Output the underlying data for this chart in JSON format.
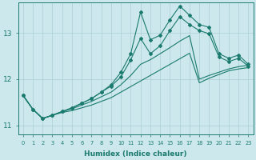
{
  "xlabel": "Humidex (Indice chaleur)",
  "ylabel": "",
  "bg_color": "#cce8ec",
  "grid_color": "#aacdd4",
  "line_color": "#1a7a6e",
  "xlim": [
    -0.5,
    23.5
  ],
  "ylim": [
    10.8,
    13.65
  ],
  "yticks": [
    11,
    12,
    13
  ],
  "xticks": [
    0,
    1,
    2,
    3,
    4,
    5,
    6,
    7,
    8,
    9,
    10,
    11,
    12,
    13,
    14,
    15,
    16,
    17,
    18,
    19,
    20,
    21,
    22,
    23
  ],
  "line1_x": [
    0,
    1,
    2,
    3,
    4,
    5,
    6,
    7,
    8,
    9,
    10,
    11,
    12,
    13,
    14,
    15,
    16,
    17,
    18,
    19,
    20,
    21,
    22,
    23
  ],
  "line1_y": [
    11.65,
    11.35,
    11.15,
    11.22,
    11.28,
    11.32,
    11.38,
    11.44,
    11.52,
    11.6,
    11.72,
    11.84,
    11.96,
    12.08,
    12.2,
    12.32,
    12.44,
    12.56,
    11.92,
    12.02,
    12.1,
    12.18,
    12.22,
    12.25
  ],
  "line2_x": [
    0,
    1,
    2,
    3,
    4,
    5,
    6,
    7,
    8,
    9,
    10,
    11,
    12,
    13,
    14,
    15,
    16,
    17,
    18,
    19,
    20,
    21,
    22,
    23
  ],
  "line2_y": [
    11.65,
    11.35,
    11.15,
    11.22,
    11.3,
    11.36,
    11.44,
    11.52,
    11.62,
    11.72,
    11.88,
    12.08,
    12.32,
    12.42,
    12.55,
    12.68,
    12.82,
    12.94,
    12.0,
    12.08,
    12.15,
    12.22,
    12.27,
    12.3
  ],
  "line3_x": [
    0,
    1,
    2,
    3,
    4,
    5,
    6,
    7,
    8,
    9,
    10,
    11,
    12,
    13,
    14,
    15,
    16,
    17,
    18,
    19,
    20,
    21,
    22,
    23
  ],
  "line3_y": [
    11.65,
    11.35,
    11.15,
    11.22,
    11.3,
    11.38,
    11.48,
    11.58,
    11.72,
    11.85,
    12.05,
    12.42,
    12.88,
    12.55,
    12.72,
    13.05,
    13.35,
    13.18,
    13.05,
    12.98,
    12.48,
    12.38,
    12.45,
    12.28
  ],
  "line4_x": [
    0,
    1,
    2,
    3,
    4,
    5,
    6,
    7,
    8,
    9,
    10,
    11,
    12,
    13,
    14,
    15,
    16,
    17,
    18,
    19,
    20,
    21,
    22,
    23
  ],
  "line4_y": [
    11.65,
    11.35,
    11.15,
    11.22,
    11.3,
    11.38,
    11.48,
    11.58,
    11.72,
    11.88,
    12.15,
    12.55,
    13.45,
    12.85,
    12.95,
    13.28,
    13.58,
    13.38,
    13.18,
    13.12,
    12.55,
    12.45,
    12.52,
    12.32
  ]
}
